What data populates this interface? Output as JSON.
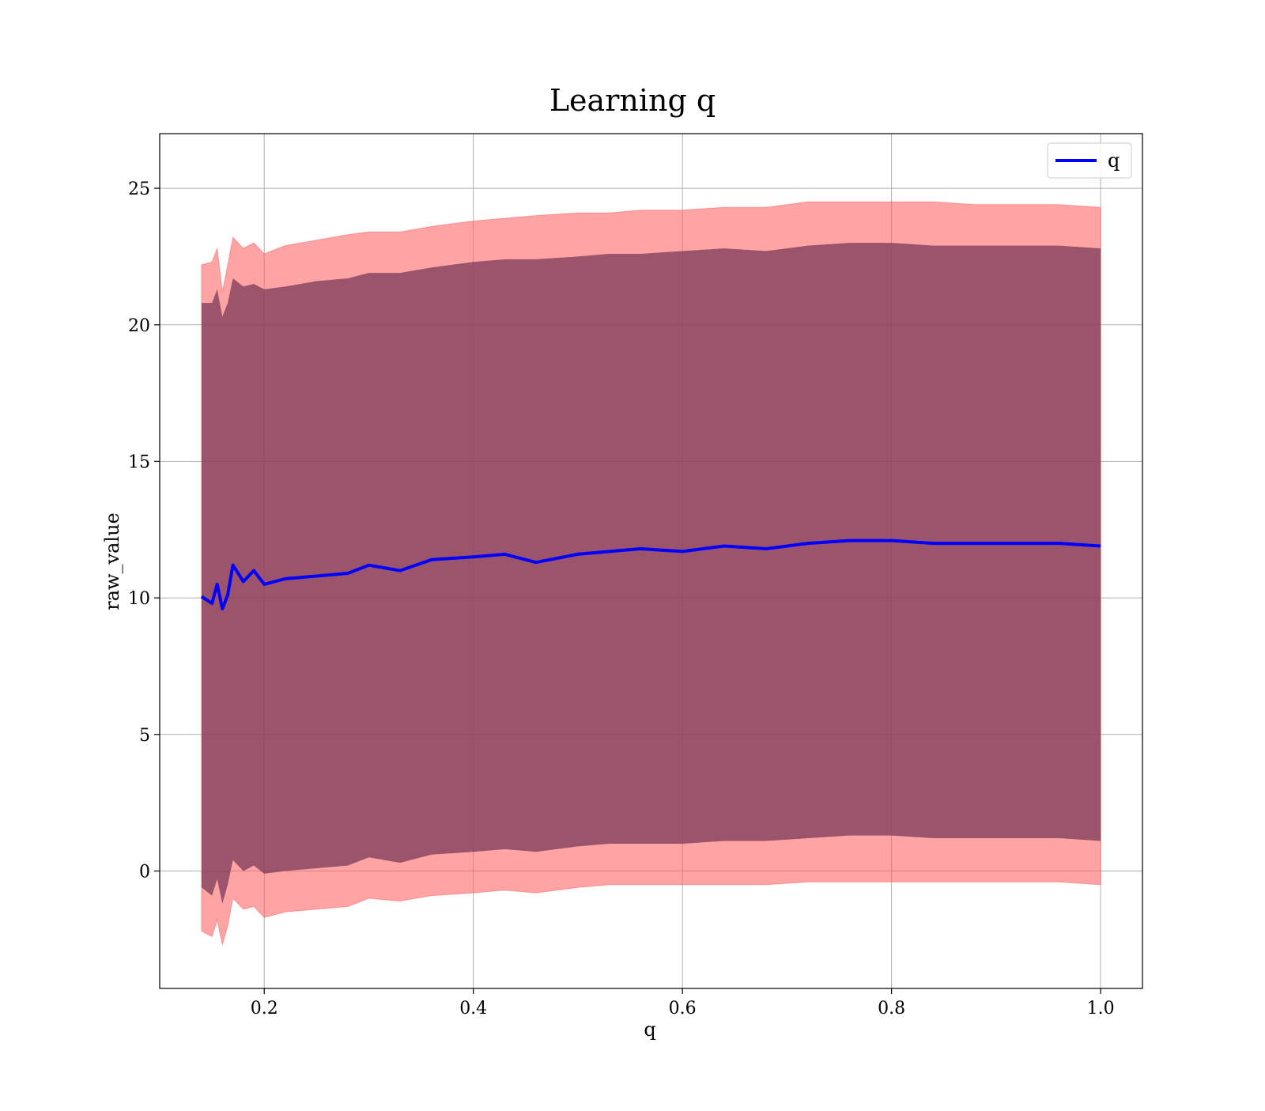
{
  "chart_data": {
    "type": "line",
    "title": "Learning q",
    "xlabel": "q",
    "ylabel": "raw_value",
    "xlim": [
      0.1,
      1.04
    ],
    "ylim": [
      -4.3,
      27.0
    ],
    "xticks": [
      0.2,
      0.4,
      0.6,
      0.8,
      1.0
    ],
    "xtick_labels": [
      "0.2",
      "0.4",
      "0.6",
      "0.8",
      "1.0"
    ],
    "yticks": [
      0,
      5,
      10,
      15,
      20,
      25
    ],
    "ytick_labels": [
      "0",
      "5",
      "10",
      "15",
      "20",
      "25"
    ],
    "grid": true,
    "legend": {
      "position": "top-right",
      "entries": [
        "q"
      ]
    },
    "colors": {
      "line": "#0000ff",
      "band_outer": "#ff5a5a",
      "band_inner": "#7a3a58",
      "grid": "#b0b0b0"
    },
    "series": [
      {
        "name": "q",
        "x": [
          0.14,
          0.15,
          0.155,
          0.16,
          0.165,
          0.17,
          0.18,
          0.19,
          0.2,
          0.22,
          0.25,
          0.28,
          0.3,
          0.33,
          0.36,
          0.4,
          0.43,
          0.46,
          0.5,
          0.53,
          0.56,
          0.6,
          0.64,
          0.68,
          0.72,
          0.76,
          0.8,
          0.84,
          0.88,
          0.92,
          0.96,
          1.0
        ],
        "y": [
          10.05,
          9.8,
          10.5,
          9.6,
          10.1,
          11.2,
          10.6,
          11.0,
          10.5,
          10.7,
          10.8,
          10.9,
          11.2,
          11.0,
          11.4,
          11.5,
          11.6,
          11.3,
          11.6,
          11.7,
          11.8,
          11.7,
          11.9,
          11.8,
          12.0,
          12.1,
          12.1,
          12.0,
          12.0,
          12.0,
          12.0,
          11.9
        ],
        "band_outer_upper": [
          22.2,
          22.3,
          22.8,
          21.2,
          22.2,
          23.2,
          22.8,
          23.0,
          22.6,
          22.9,
          23.1,
          23.3,
          23.4,
          23.4,
          23.6,
          23.8,
          23.9,
          24.0,
          24.1,
          24.1,
          24.2,
          24.2,
          24.3,
          24.3,
          24.5,
          24.5,
          24.5,
          24.5,
          24.4,
          24.4,
          24.4,
          24.3
        ],
        "band_outer_lower": [
          -2.2,
          -2.4,
          -1.8,
          -2.7,
          -2.0,
          -1.0,
          -1.4,
          -1.3,
          -1.7,
          -1.5,
          -1.4,
          -1.3,
          -1.0,
          -1.1,
          -0.9,
          -0.8,
          -0.7,
          -0.8,
          -0.6,
          -0.5,
          -0.5,
          -0.5,
          -0.5,
          -0.5,
          -0.4,
          -0.4,
          -0.4,
          -0.4,
          -0.4,
          -0.4,
          -0.4,
          -0.5
        ],
        "band_inner_upper": [
          20.8,
          20.8,
          21.3,
          20.3,
          20.8,
          21.7,
          21.4,
          21.5,
          21.3,
          21.4,
          21.6,
          21.7,
          21.9,
          21.9,
          22.1,
          22.3,
          22.4,
          22.4,
          22.5,
          22.6,
          22.6,
          22.7,
          22.8,
          22.7,
          22.9,
          23.0,
          23.0,
          22.9,
          22.9,
          22.9,
          22.9,
          22.8
        ],
        "band_inner_lower": [
          -0.6,
          -0.9,
          -0.3,
          -1.2,
          -0.5,
          0.4,
          0.0,
          0.2,
          -0.1,
          0.0,
          0.1,
          0.2,
          0.5,
          0.3,
          0.6,
          0.7,
          0.8,
          0.7,
          0.9,
          1.0,
          1.0,
          1.0,
          1.1,
          1.1,
          1.2,
          1.3,
          1.3,
          1.2,
          1.2,
          1.2,
          1.2,
          1.1
        ]
      }
    ]
  }
}
